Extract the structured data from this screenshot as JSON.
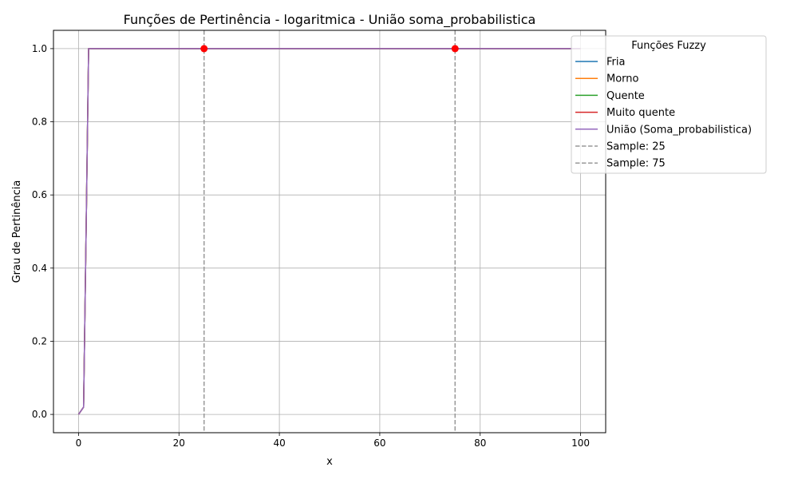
{
  "chart_data": {
    "type": "line",
    "title": "Funções de Pertinência - logaritmica - União soma_probabilistica",
    "xlabel": "x",
    "ylabel": "Grau de Pertinência",
    "xlim": [
      -5,
      105
    ],
    "ylim": [
      -0.05,
      1.05
    ],
    "xticks": [
      0,
      20,
      40,
      60,
      80,
      100
    ],
    "yticks": [
      0.0,
      0.2,
      0.4,
      0.6,
      0.8,
      1.0
    ],
    "xtick_labels": [
      "0",
      "20",
      "40",
      "60",
      "80",
      "100"
    ],
    "ytick_labels": [
      "0.0",
      "0.2",
      "0.4",
      "0.6",
      "0.8",
      "1.0"
    ],
    "grid": true,
    "legend": {
      "title": "Funções Fuzzy",
      "placement": "outside-top-right"
    },
    "series": [
      {
        "name": "Fria",
        "color": "#1f77b4",
        "style": "solid",
        "x": [
          0,
          1,
          1.5,
          2,
          100
        ],
        "y": [
          0.0,
          0.02,
          0.5,
          1.0,
          1.0
        ]
      },
      {
        "name": "Morno",
        "color": "#ff7f0e",
        "style": "solid",
        "x": [
          0,
          1,
          1.5,
          2,
          100
        ],
        "y": [
          0.0,
          0.02,
          0.5,
          1.0,
          1.0
        ]
      },
      {
        "name": "Quente",
        "color": "#2ca02c",
        "style": "solid",
        "x": [
          0,
          1,
          1.5,
          2,
          100
        ],
        "y": [
          0.0,
          0.02,
          0.5,
          1.0,
          1.0
        ]
      },
      {
        "name": "Muito quente",
        "color": "#d62728",
        "style": "solid",
        "x": [
          0,
          1,
          1.5,
          2,
          100
        ],
        "y": [
          0.0,
          0.02,
          0.5,
          1.0,
          1.0
        ]
      },
      {
        "name": "União (Soma_probabilistica)",
        "color": "#9467bd",
        "style": "solid",
        "x": [
          0,
          1,
          1.5,
          2,
          100
        ],
        "y": [
          0.0,
          0.02,
          0.5,
          1.0,
          1.0
        ]
      }
    ],
    "vlines": [
      {
        "name": "Sample: 25",
        "x": 25,
        "color": "#999999",
        "style": "dashed"
      },
      {
        "name": "Sample: 75",
        "x": 75,
        "color": "#999999",
        "style": "dashed"
      }
    ],
    "points": [
      {
        "x": 25,
        "y": 1.0,
        "color": "#ff0000"
      },
      {
        "x": 75,
        "y": 1.0,
        "color": "#ff0000"
      }
    ]
  }
}
